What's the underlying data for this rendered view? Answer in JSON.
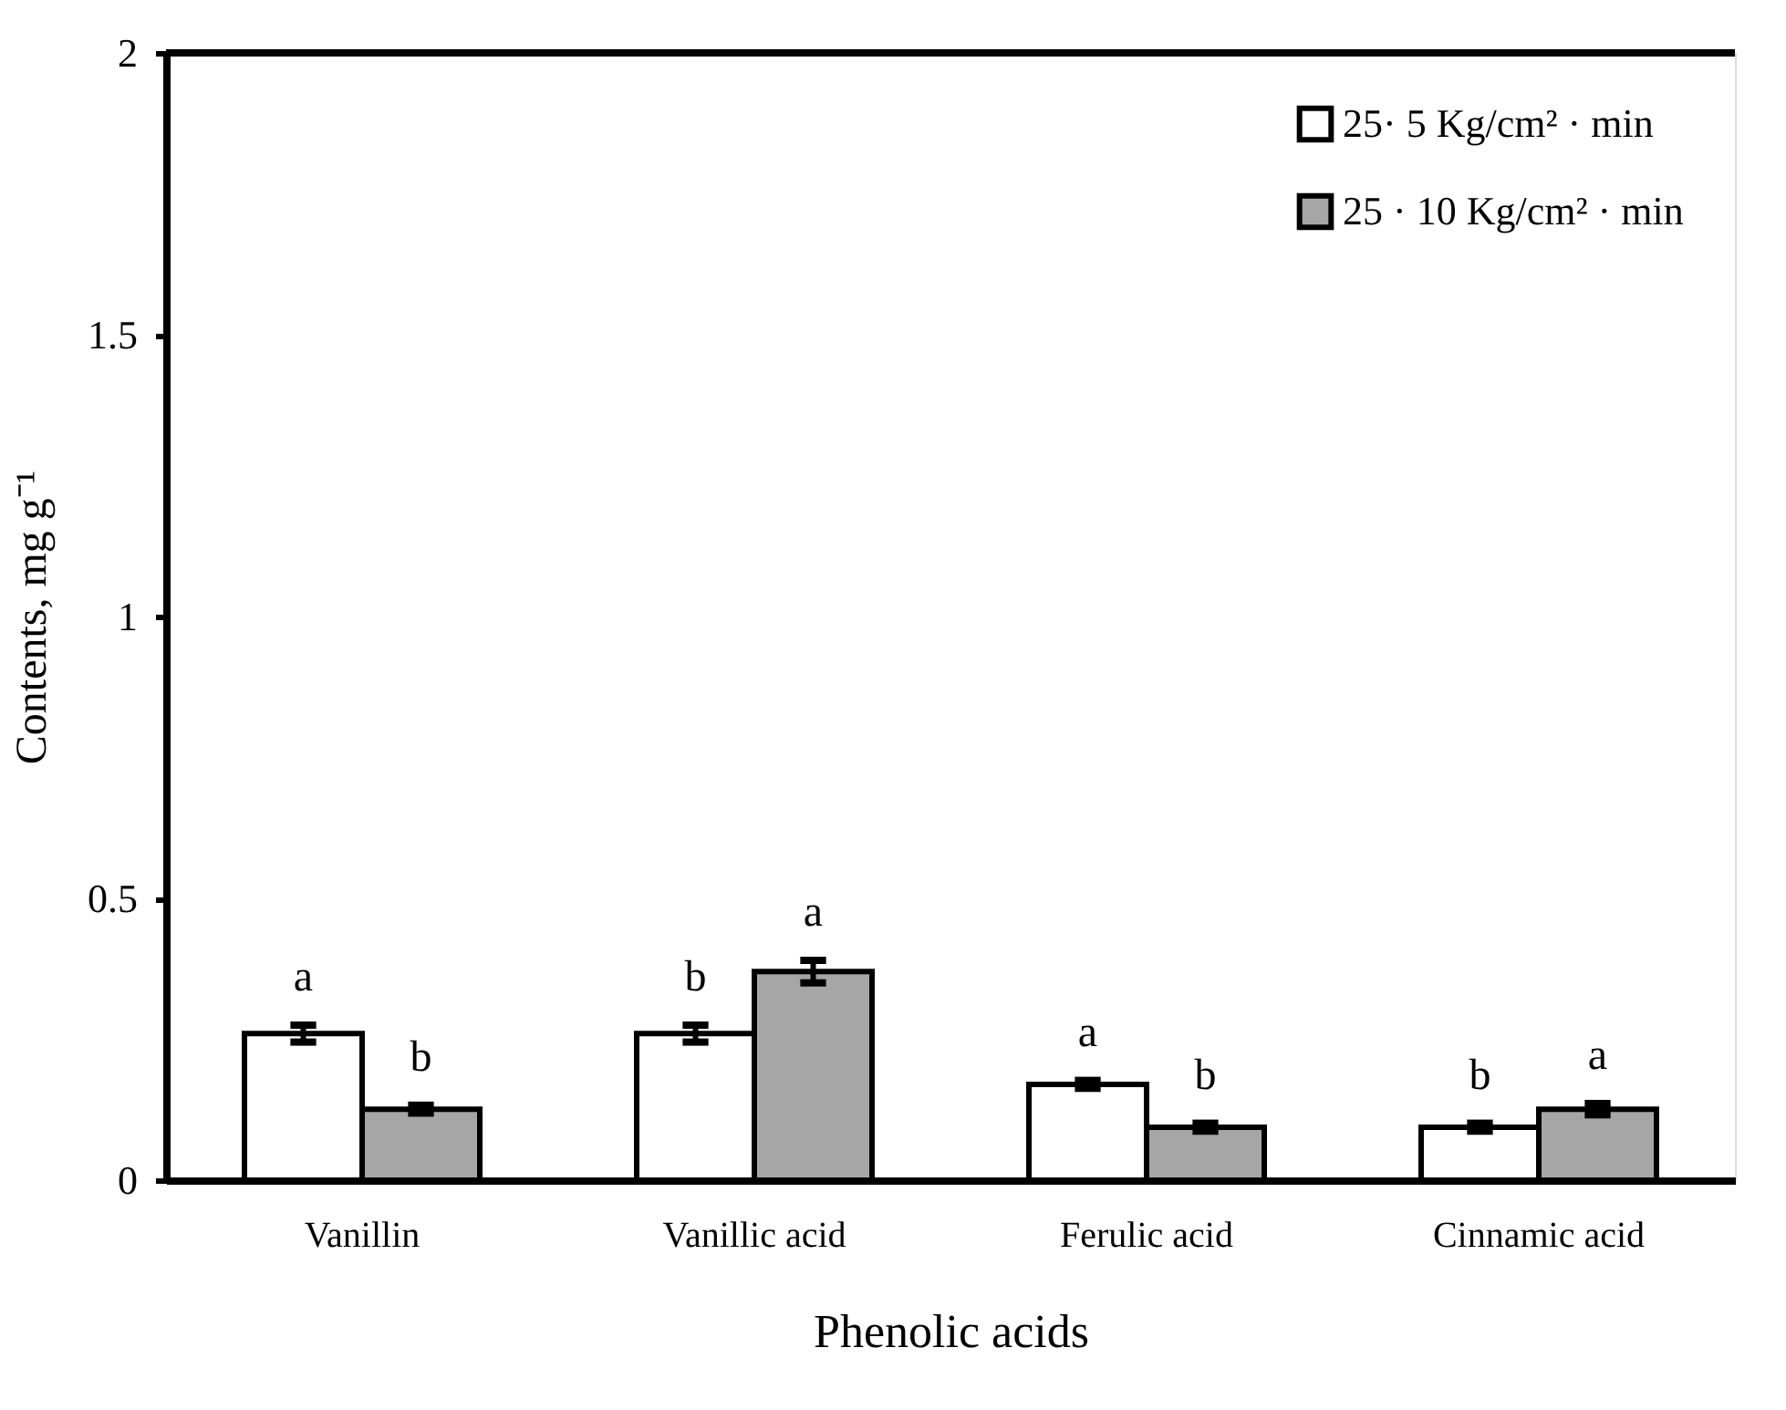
{
  "chart_data": {
    "type": "bar",
    "xlabel": "Phenolic acids",
    "ylabel": "Contents, mg g⁻¹",
    "categories": [
      "Vanillin",
      "Vanillic acid",
      "Ferulic acid",
      "Cinnamic acid"
    ],
    "series": [
      {
        "name": "25·  5 Kg/cm² · min",
        "color": "#ffffff",
        "values": [
          0.26,
          0.26,
          0.17,
          0.094
        ],
        "errors": [
          0.015,
          0.015,
          0.007,
          0.007
        ]
      },
      {
        "name": "25 · 10 Kg/cm² · min",
        "color": "#a6a6a6",
        "values": [
          0.126,
          0.37,
          0.094,
          0.126
        ],
        "errors": [
          0.007,
          0.02,
          0.007,
          0.01
        ]
      }
    ],
    "ylim": [
      0,
      2
    ],
    "yticks": [
      0,
      {
        "value": 0.5,
        "label": "0.5"
      },
      1,
      {
        "value": 1.5,
        "label": "1.5"
      },
      2
    ],
    "grid": false,
    "legend": "top right",
    "annotations": [
      "a",
      "b",
      "b",
      "a",
      "a",
      "b",
      "b",
      "a"
    ]
  }
}
